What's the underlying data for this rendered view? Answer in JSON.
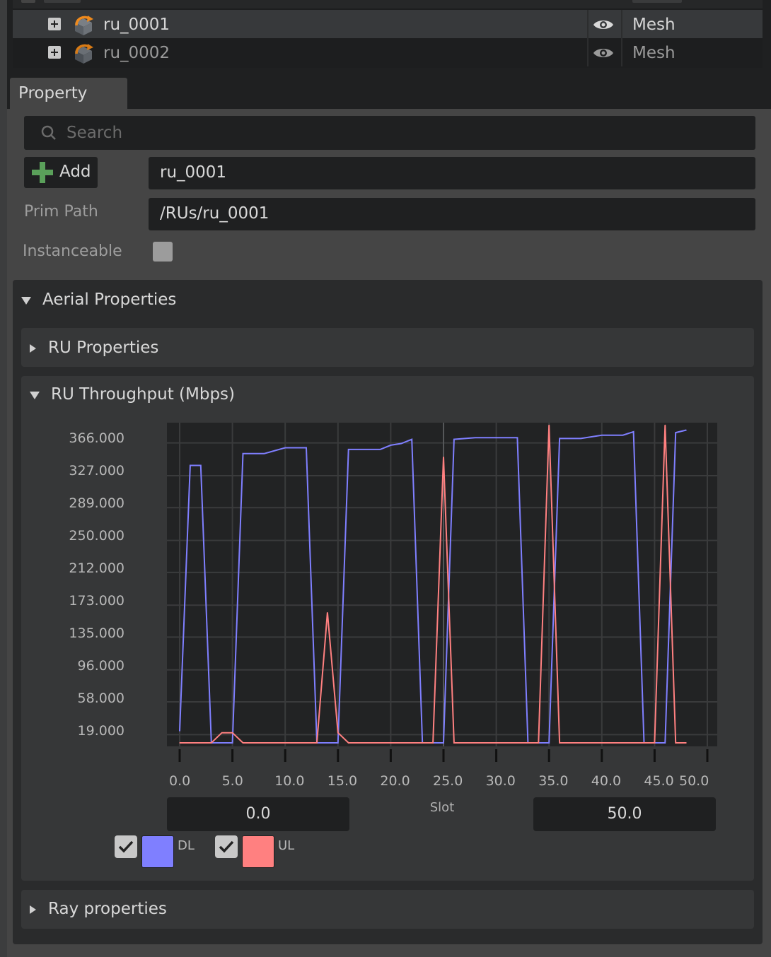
{
  "stage_tree": {
    "rows": [
      {
        "name": "ru_0001",
        "type": "Mesh",
        "selected": true
      },
      {
        "name": "ru_0002",
        "type": "Mesh",
        "selected": false
      }
    ]
  },
  "property": {
    "tab_label": "Property",
    "search_placeholder": "Search",
    "add_label": "Add",
    "name_value": "ru_0001",
    "prim_path_label": "Prim Path",
    "prim_path_value": "/RUs/ru_0001",
    "instanceable_label": "Instanceable",
    "instanceable_checked": false
  },
  "sections": {
    "aerial": "Aerial Properties",
    "ru_props": "RU Properties",
    "ru_throughput": "RU Throughput (Mbps)",
    "ray_props": "Ray properties"
  },
  "chart_controls": {
    "range_min": "0.0",
    "range_max": "50.0",
    "slot_label": "Slot",
    "legend": [
      {
        "label": "DL",
        "color": "#7f7fff",
        "checked": true
      },
      {
        "label": "UL",
        "color": "#ff8080",
        "checked": true
      }
    ]
  },
  "chart_data": {
    "type": "line",
    "title": "RU Throughput (Mbps)",
    "xlabel": "Slot",
    "ylabel": "",
    "xlim": [
      -1,
      50
    ],
    "ylim": [
      0,
      380
    ],
    "y_ticks": [
      "366.000",
      "327.000",
      "289.000",
      "250.000",
      "212.000",
      "173.000",
      "135.000",
      "96.000",
      "58.000",
      "19.000"
    ],
    "x_ticks": [
      "0.0",
      "5.0",
      "10.0",
      "15.0",
      "20.0",
      "25.0",
      "30.0",
      "35.0",
      "40.0",
      "45.0",
      "50.0"
    ],
    "series": [
      {
        "name": "DL",
        "color": "#7f7fff",
        "points": [
          [
            0,
            14
          ],
          [
            1,
            330
          ],
          [
            2,
            330
          ],
          [
            3,
            0
          ],
          [
            5,
            0
          ],
          [
            6,
            344
          ],
          [
            8,
            344
          ],
          [
            10,
            351
          ],
          [
            12,
            351
          ],
          [
            13,
            0
          ],
          [
            15,
            0
          ],
          [
            16,
            349
          ],
          [
            19,
            349
          ],
          [
            20,
            354
          ],
          [
            21,
            356
          ],
          [
            22,
            361
          ],
          [
            23,
            0
          ],
          [
            25,
            0
          ],
          [
            26,
            361
          ],
          [
            28,
            363
          ],
          [
            32,
            363
          ],
          [
            33,
            0
          ],
          [
            35,
            0
          ],
          [
            36,
            362
          ],
          [
            38,
            362
          ],
          [
            40,
            366
          ],
          [
            42,
            366
          ],
          [
            43,
            370
          ],
          [
            44,
            0
          ],
          [
            46,
            0
          ],
          [
            47,
            369
          ],
          [
            48,
            372
          ]
        ],
        "values": [
          14,
          330,
          330,
          0,
          0,
          344,
          344,
          351,
          351,
          0,
          0,
          349,
          349,
          354,
          356,
          361,
          0,
          0,
          361,
          363,
          363,
          0,
          0,
          362,
          362,
          366,
          366,
          370,
          0,
          0,
          369,
          372
        ]
      },
      {
        "name": "UL",
        "color": "#ff8080",
        "points": [
          [
            0,
            0
          ],
          [
            3,
            0
          ],
          [
            4,
            12
          ],
          [
            5,
            12
          ],
          [
            6,
            0
          ],
          [
            13,
            0
          ],
          [
            14,
            155
          ],
          [
            15,
            12
          ],
          [
            16,
            0
          ],
          [
            24,
            0
          ],
          [
            25,
            340
          ],
          [
            26,
            0
          ],
          [
            34,
            0
          ],
          [
            35,
            378
          ],
          [
            36,
            0
          ],
          [
            45,
            0
          ],
          [
            46,
            378
          ],
          [
            47,
            0
          ],
          [
            48,
            0
          ]
        ],
        "values": [
          0,
          0,
          12,
          12,
          0,
          0,
          155,
          12,
          0,
          0,
          340,
          0,
          0,
          378,
          0,
          0,
          378,
          0,
          0
        ]
      }
    ],
    "grid": true
  }
}
